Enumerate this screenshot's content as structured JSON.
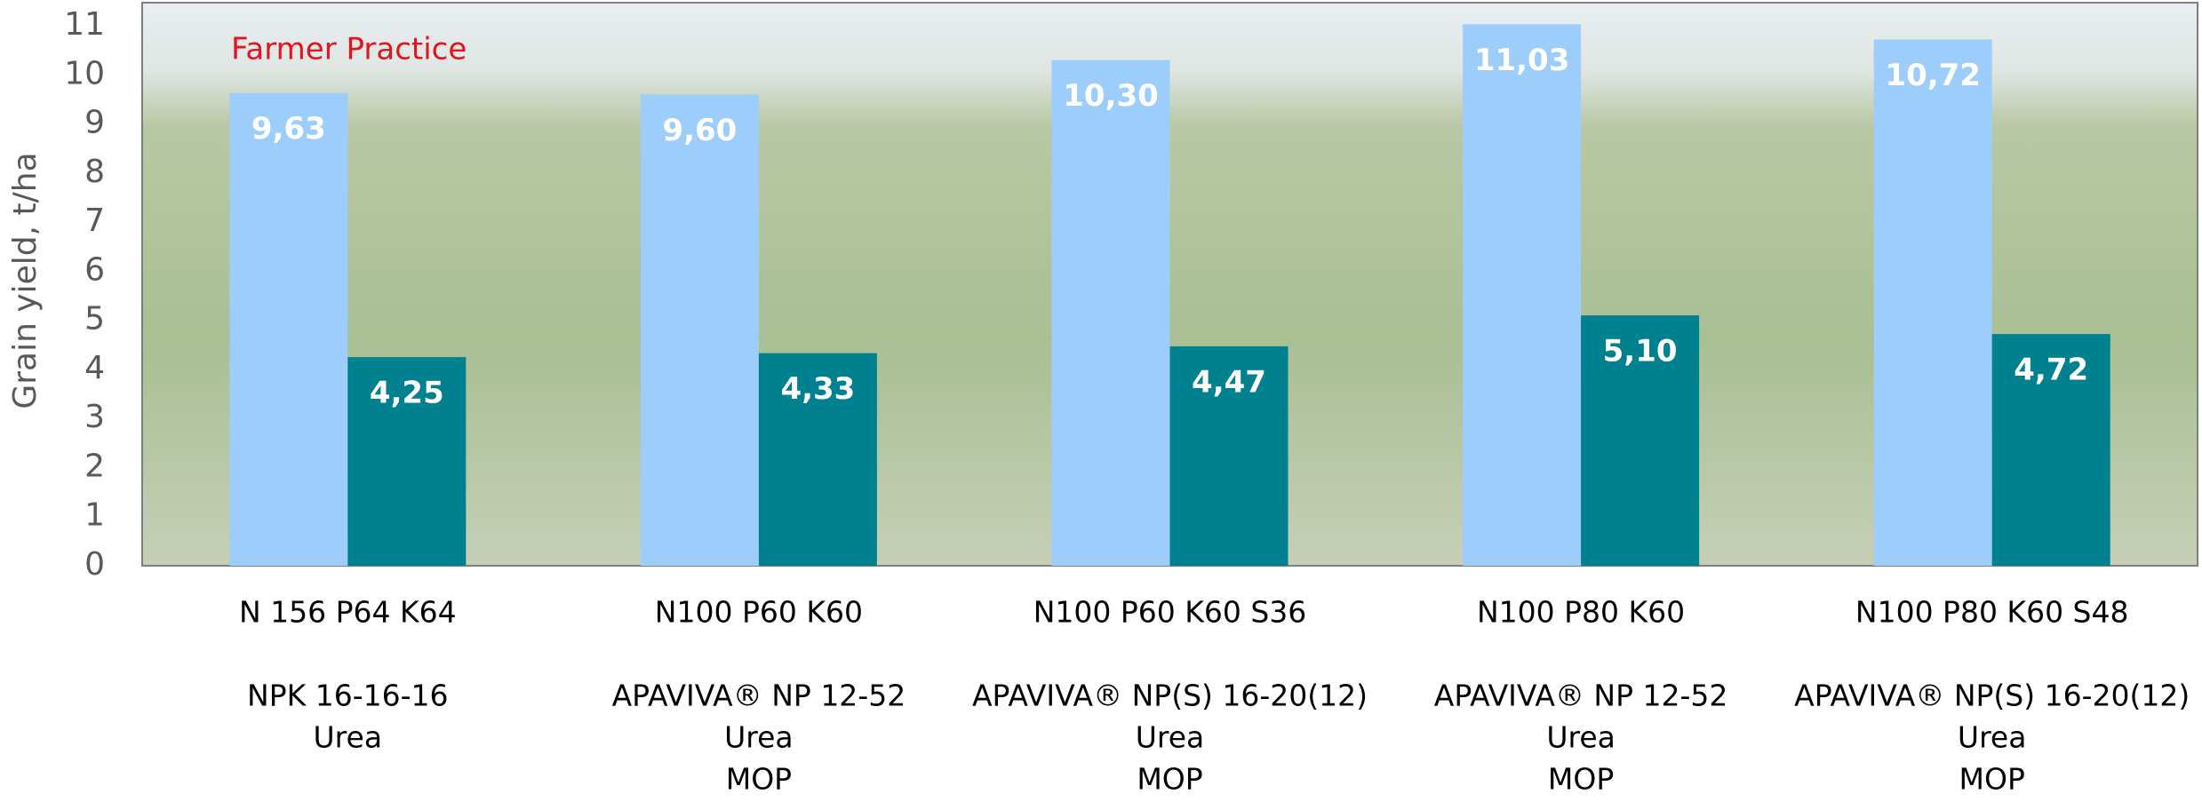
{
  "chart_data": {
    "type": "bar",
    "annotation": "Farmer Practice",
    "annotation_color": "#e3141b",
    "ylabel": "Grain yield, t/ha",
    "categories": [
      [
        "N 156 P64 K64",
        "NPK 16-16-16",
        "Urea"
      ],
      [
        "N100 P60 K60",
        "APAVIVA® NP 12-52",
        "Urea",
        "MOP"
      ],
      [
        "N100 P60 K60 S36",
        "APAVIVA® NP(S) 16-20(12)",
        "Urea",
        "MOP"
      ],
      [
        "N100 P80 K60",
        "APAVIVA® NP 12-52",
        "Urea",
        "MOP"
      ],
      [
        "N100 P80 K60 S48",
        "APAVIVA® NP(S) 16-20(12)",
        "Urea",
        "MOP"
      ]
    ],
    "series": [
      {
        "color": "#9dcdfb",
        "values": [
          9.63,
          9.6,
          10.3,
          11.03,
          10.72
        ],
        "value_labels": [
          "9,63",
          "9,60",
          "10,30",
          "11,03",
          "10,72"
        ]
      },
      {
        "color": "#00818f",
        "values": [
          4.25,
          4.33,
          4.47,
          5.1,
          4.72
        ],
        "value_labels": [
          "4,25",
          "4,33",
          "4,47",
          "5,10",
          "4,72"
        ]
      }
    ],
    "ylim": [
      0,
      11
    ],
    "yticks": [
      0,
      1,
      2,
      3,
      4,
      5,
      6,
      7,
      8,
      9,
      10,
      11
    ]
  }
}
